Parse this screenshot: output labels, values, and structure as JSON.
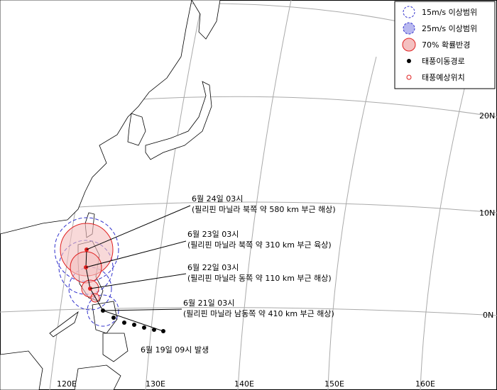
{
  "legend": {
    "items": [
      "15m/s 이상범위",
      "25m/s 이상범위",
      "70% 확률반경",
      "태풍이동경로",
      "태풍예상위치"
    ]
  },
  "forecasts": [
    {
      "time": "6월 24일 03시",
      "position": "(필리핀 마닐라 북쪽 약 580 km 부근 해상)"
    },
    {
      "time": "6월 23일 03시",
      "position": "(필리핀 마닐라 북쪽 약 310 km 부근 육상)"
    },
    {
      "time": "6월 22일 03시",
      "position": "(필리핀 마닐라 동쪽 약 110 km 부근 해상)"
    },
    {
      "time": "6월 21일 03시",
      "position": "(필리핀 마닐라 남동쪽 약 410 km 부근 해상)"
    }
  ],
  "genesis": "6월 19일 09시 발생",
  "longitude_labels": [
    "120E",
    "130E",
    "140E",
    "150E",
    "160E"
  ],
  "latitude_labels": [
    "20N",
    "10N",
    "0N"
  ]
}
